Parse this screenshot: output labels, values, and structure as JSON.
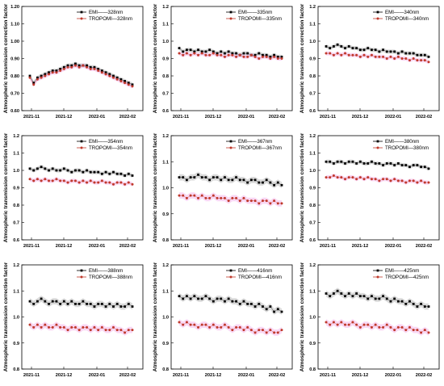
{
  "ylabel": "Atmospheric transmission correction factor",
  "x_ticks": [
    "2021-11",
    "2021-12",
    "2022-01",
    "2022-02"
  ],
  "colors": {
    "emi": "#000000",
    "tropomi": "#c0392b",
    "tropomi_band": "#f4b8ec",
    "emi_band": "#bdbdbd"
  },
  "chart_data": [
    {
      "type": "scatter",
      "ylim": [
        0.6,
        1.2
      ],
      "yticks": [
        "0.60",
        "0.70",
        "0.80",
        "0.90",
        "1.00",
        "1.10",
        "1.20"
      ],
      "series": [
        {
          "name": "EMI——328nm",
          "values": [
            0.8,
            0.76,
            0.79,
            0.8,
            0.81,
            0.82,
            0.83,
            0.83,
            0.84,
            0.85,
            0.86,
            0.86,
            0.87,
            0.86,
            0.86,
            0.86,
            0.85,
            0.85,
            0.84,
            0.83,
            0.82,
            0.81,
            0.8,
            0.79,
            0.78,
            0.77,
            0.76,
            0.75
          ]
        },
        {
          "name": "TROPOMI—328nm",
          "values": [
            0.79,
            0.75,
            0.78,
            0.79,
            0.8,
            0.81,
            0.82,
            0.82,
            0.83,
            0.84,
            0.85,
            0.85,
            0.86,
            0.85,
            0.86,
            0.85,
            0.84,
            0.84,
            0.83,
            0.82,
            0.81,
            0.8,
            0.79,
            0.78,
            0.77,
            0.76,
            0.75,
            0.74
          ]
        }
      ]
    },
    {
      "type": "scatter",
      "ylim": [
        0.6,
        1.2
      ],
      "yticks": [
        "0.6",
        "0.7",
        "0.8",
        "0.9",
        "1.0",
        "1.1",
        "1.2"
      ],
      "series": [
        {
          "name": "EMI——335nm",
          "values": [
            0.96,
            0.94,
            0.95,
            0.95,
            0.94,
            0.95,
            0.94,
            0.94,
            0.95,
            0.94,
            0.93,
            0.94,
            0.93,
            0.94,
            0.93,
            0.93,
            0.92,
            0.93,
            0.93,
            0.92,
            0.92,
            0.93,
            0.92,
            0.92,
            0.91,
            0.92,
            0.91,
            0.91
          ]
        },
        {
          "name": "TROPOMI—335nm",
          "values": [
            0.93,
            0.92,
            0.93,
            0.92,
            0.93,
            0.92,
            0.93,
            0.92,
            0.92,
            0.93,
            0.92,
            0.92,
            0.91,
            0.92,
            0.92,
            0.91,
            0.92,
            0.91,
            0.91,
            0.92,
            0.91,
            0.9,
            0.91,
            0.91,
            0.9,
            0.91,
            0.9,
            0.9
          ]
        }
      ]
    },
    {
      "type": "scatter",
      "ylim": [
        0.6,
        1.2
      ],
      "yticks": [
        "0.6",
        "0.7",
        "0.8",
        "0.9",
        "1.0",
        "1.1",
        "1.2"
      ],
      "series": [
        {
          "name": "EMI——340nm",
          "values": [
            0.97,
            0.96,
            0.97,
            0.98,
            0.97,
            0.96,
            0.97,
            0.96,
            0.96,
            0.95,
            0.95,
            0.96,
            0.95,
            0.95,
            0.94,
            0.95,
            0.94,
            0.94,
            0.94,
            0.93,
            0.94,
            0.93,
            0.93,
            0.93,
            0.92,
            0.92,
            0.92,
            0.91
          ]
        },
        {
          "name": "TROPOMI—340nm",
          "values": [
            0.93,
            0.93,
            0.92,
            0.93,
            0.92,
            0.93,
            0.92,
            0.92,
            0.92,
            0.91,
            0.92,
            0.91,
            0.92,
            0.91,
            0.91,
            0.91,
            0.9,
            0.91,
            0.9,
            0.91,
            0.9,
            0.9,
            0.89,
            0.9,
            0.89,
            0.89,
            0.89,
            0.88
          ]
        }
      ]
    },
    {
      "type": "scatter",
      "ylim": [
        0.6,
        1.2
      ],
      "yticks": [
        "0.6",
        "0.7",
        "0.8",
        "0.9",
        "1.0",
        "1.1",
        "1.2"
      ],
      "series": [
        {
          "name": "EMI——354nm",
          "values": [
            1.01,
            1.0,
            1.01,
            1.02,
            1.01,
            1.0,
            1.01,
            1.0,
            1.0,
            1.01,
            1.0,
            0.99,
            1.0,
            1.0,
            0.99,
            1.0,
            0.99,
            0.99,
            0.99,
            0.98,
            0.99,
            0.98,
            0.99,
            0.98,
            0.98,
            0.97,
            0.98,
            0.97
          ]
        },
        {
          "name": "TROPOMI—354nm",
          "values": [
            0.95,
            0.94,
            0.95,
            0.94,
            0.95,
            0.94,
            0.94,
            0.95,
            0.94,
            0.94,
            0.93,
            0.94,
            0.94,
            0.93,
            0.94,
            0.93,
            0.94,
            0.93,
            0.93,
            0.94,
            0.93,
            0.93,
            0.92,
            0.93,
            0.93,
            0.92,
            0.93,
            0.92
          ]
        }
      ]
    },
    {
      "type": "scatter",
      "ylim": [
        0.8,
        1.2
      ],
      "yticks": [
        "0.8",
        "0.9",
        "1.0",
        "1.1",
        "1.2"
      ],
      "series": [
        {
          "name": "EMI——367nm",
          "values": [
            1.04,
            1.04,
            1.03,
            1.04,
            1.04,
            1.05,
            1.04,
            1.04,
            1.03,
            1.04,
            1.04,
            1.03,
            1.04,
            1.03,
            1.03,
            1.04,
            1.03,
            1.03,
            1.02,
            1.03,
            1.03,
            1.02,
            1.02,
            1.03,
            1.02,
            1.01,
            1.02,
            1.01
          ]
        },
        {
          "name": "TROPOMI—367nm",
          "values": [
            0.97,
            0.97,
            0.96,
            0.97,
            0.97,
            0.96,
            0.97,
            0.96,
            0.96,
            0.97,
            0.96,
            0.96,
            0.96,
            0.95,
            0.96,
            0.96,
            0.95,
            0.96,
            0.95,
            0.95,
            0.95,
            0.94,
            0.95,
            0.95,
            0.94,
            0.95,
            0.94,
            0.94
          ]
        }
      ]
    },
    {
      "type": "scatter",
      "ylim": [
        0.6,
        1.2
      ],
      "yticks": [
        "0.6",
        "0.7",
        "0.8",
        "0.9",
        "1.0",
        "1.1",
        "1.2"
      ],
      "series": [
        {
          "name": "EMI——380nm",
          "values": [
            1.05,
            1.05,
            1.04,
            1.05,
            1.05,
            1.04,
            1.05,
            1.05,
            1.04,
            1.05,
            1.04,
            1.04,
            1.05,
            1.04,
            1.04,
            1.03,
            1.04,
            1.04,
            1.03,
            1.04,
            1.03,
            1.03,
            1.02,
            1.03,
            1.03,
            1.02,
            1.02,
            1.01
          ]
        },
        {
          "name": "TROPOMI—380nm",
          "values": [
            0.96,
            0.96,
            0.97,
            0.96,
            0.96,
            0.95,
            0.96,
            0.96,
            0.95,
            0.96,
            0.95,
            0.96,
            0.95,
            0.95,
            0.94,
            0.95,
            0.95,
            0.94,
            0.95,
            0.94,
            0.94,
            0.93,
            0.94,
            0.94,
            0.93,
            0.94,
            0.93,
            0.93
          ]
        }
      ]
    },
    {
      "type": "scatter",
      "ylim": [
        0.8,
        1.2
      ],
      "yticks": [
        "0.8",
        "0.9",
        "1.0",
        "1.1",
        "1.2"
      ],
      "series": [
        {
          "name": "EMI——388nm",
          "values": [
            1.06,
            1.05,
            1.06,
            1.07,
            1.06,
            1.05,
            1.06,
            1.06,
            1.05,
            1.06,
            1.05,
            1.06,
            1.05,
            1.05,
            1.06,
            1.05,
            1.05,
            1.04,
            1.05,
            1.05,
            1.04,
            1.05,
            1.04,
            1.05,
            1.04,
            1.04,
            1.05,
            1.04
          ]
        },
        {
          "name": "TROPOMI—388nm",
          "values": [
            0.97,
            0.96,
            0.97,
            0.96,
            0.97,
            0.96,
            0.96,
            0.97,
            0.96,
            0.96,
            0.95,
            0.96,
            0.96,
            0.95,
            0.96,
            0.96,
            0.95,
            0.96,
            0.95,
            0.96,
            0.95,
            0.95,
            0.96,
            0.95,
            0.95,
            0.94,
            0.95,
            0.95
          ]
        }
      ]
    },
    {
      "type": "scatter",
      "ylim": [
        0.8,
        1.2
      ],
      "yticks": [
        "0.8",
        "0.9",
        "1.0",
        "1.1",
        "1.2"
      ],
      "series": [
        {
          "name": "EMI——416nm",
          "values": [
            1.08,
            1.07,
            1.08,
            1.07,
            1.08,
            1.07,
            1.07,
            1.08,
            1.07,
            1.06,
            1.07,
            1.07,
            1.06,
            1.07,
            1.06,
            1.06,
            1.05,
            1.06,
            1.05,
            1.05,
            1.04,
            1.05,
            1.04,
            1.03,
            1.04,
            1.02,
            1.03,
            1.02
          ]
        },
        {
          "name": "TROPOMI—416nm",
          "values": [
            0.98,
            0.97,
            0.98,
            0.97,
            0.97,
            0.96,
            0.97,
            0.97,
            0.96,
            0.97,
            0.96,
            0.96,
            0.97,
            0.96,
            0.95,
            0.96,
            0.96,
            0.95,
            0.96,
            0.95,
            0.94,
            0.95,
            0.95,
            0.94,
            0.95,
            0.94,
            0.94,
            0.95
          ]
        }
      ]
    },
    {
      "type": "scatter",
      "ylim": [
        0.8,
        1.2
      ],
      "yticks": [
        "0.8",
        "0.9",
        "1.0",
        "1.1",
        "1.2"
      ],
      "series": [
        {
          "name": "EMI——425nm",
          "values": [
            1.09,
            1.08,
            1.09,
            1.1,
            1.09,
            1.08,
            1.09,
            1.08,
            1.09,
            1.08,
            1.08,
            1.07,
            1.08,
            1.07,
            1.07,
            1.08,
            1.07,
            1.06,
            1.07,
            1.06,
            1.06,
            1.05,
            1.06,
            1.05,
            1.04,
            1.05,
            1.04,
            1.04
          ]
        },
        {
          "name": "TROPOMI—425nm",
          "values": [
            0.98,
            0.97,
            0.98,
            0.97,
            0.98,
            0.97,
            0.97,
            0.98,
            0.97,
            0.96,
            0.97,
            0.97,
            0.96,
            0.97,
            0.96,
            0.96,
            0.97,
            0.96,
            0.95,
            0.96,
            0.96,
            0.95,
            0.96,
            0.95,
            0.95,
            0.94,
            0.95,
            0.94
          ]
        }
      ]
    }
  ]
}
